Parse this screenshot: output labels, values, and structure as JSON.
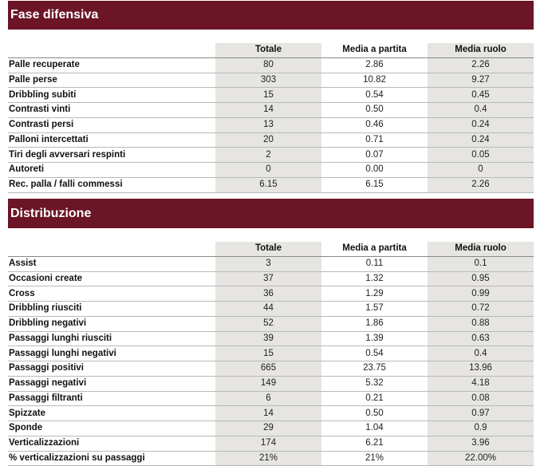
{
  "sections": [
    {
      "title": "Fase difensiva",
      "columns": [
        "Totale",
        "Media a partita",
        "Media ruolo"
      ],
      "rows": [
        {
          "label": "Palle recuperate",
          "totale": "80",
          "media": "2.86",
          "ruolo": "2.26"
        },
        {
          "label": "Palle perse",
          "totale": "303",
          "media": "10.82",
          "ruolo": "9.27"
        },
        {
          "label": "Dribbling subiti",
          "totale": "15",
          "media": "0.54",
          "ruolo": "0.45"
        },
        {
          "label": "Contrasti vinti",
          "totale": "14",
          "media": "0.50",
          "ruolo": "0.4"
        },
        {
          "label": "Contrasti persi",
          "totale": "13",
          "media": "0.46",
          "ruolo": "0.24"
        },
        {
          "label": "Palloni intercettati",
          "totale": "20",
          "media": "0.71",
          "ruolo": "0.24"
        },
        {
          "label": "Tiri degli avversari respinti",
          "totale": "2",
          "media": "0.07",
          "ruolo": "0.05"
        },
        {
          "label": "Autoreti",
          "totale": "0",
          "media": "0.00",
          "ruolo": "0"
        },
        {
          "label": "Rec. palla / falli commessi",
          "totale": "6.15",
          "media": "6.15",
          "ruolo": "2.26"
        }
      ]
    },
    {
      "title": "Distribuzione",
      "columns": [
        "Totale",
        "Media a partita",
        "Media ruolo"
      ],
      "rows": [
        {
          "label": "Assist",
          "totale": "3",
          "media": "0.11",
          "ruolo": "0.1"
        },
        {
          "label": "Occasioni create",
          "totale": "37",
          "media": "1.32",
          "ruolo": "0.95"
        },
        {
          "label": "Cross",
          "totale": "36",
          "media": "1.29",
          "ruolo": "0.99"
        },
        {
          "label": "Dribbling riusciti",
          "totale": "44",
          "media": "1.57",
          "ruolo": "0.72"
        },
        {
          "label": "Dribbling negativi",
          "totale": "52",
          "media": "1.86",
          "ruolo": "0.88"
        },
        {
          "label": "Passaggi lunghi riusciti",
          "totale": "39",
          "media": "1.39",
          "ruolo": "0.63"
        },
        {
          "label": "Passaggi lunghi negativi",
          "totale": "15",
          "media": "0.54",
          "ruolo": "0.4"
        },
        {
          "label": "Passaggi positivi",
          "totale": "665",
          "media": "23.75",
          "ruolo": "13.96"
        },
        {
          "label": "Passaggi negativi",
          "totale": "149",
          "media": "5.32",
          "ruolo": "4.18"
        },
        {
          "label": "Passaggi filtranti",
          "totale": "6",
          "media": "0.21",
          "ruolo": "0.08"
        },
        {
          "label": "Spizzate",
          "totale": "14",
          "media": "0.50",
          "ruolo": "0.97"
        },
        {
          "label": "Sponde",
          "totale": "29",
          "media": "1.04",
          "ruolo": "0.9"
        },
        {
          "label": "Verticalizzazioni",
          "totale": "174",
          "media": "6.21",
          "ruolo": "3.96"
        },
        {
          "label": "% verticalizzazioni su passaggi",
          "totale": "21%",
          "media": "21%",
          "ruolo": "22.00%"
        }
      ]
    }
  ]
}
